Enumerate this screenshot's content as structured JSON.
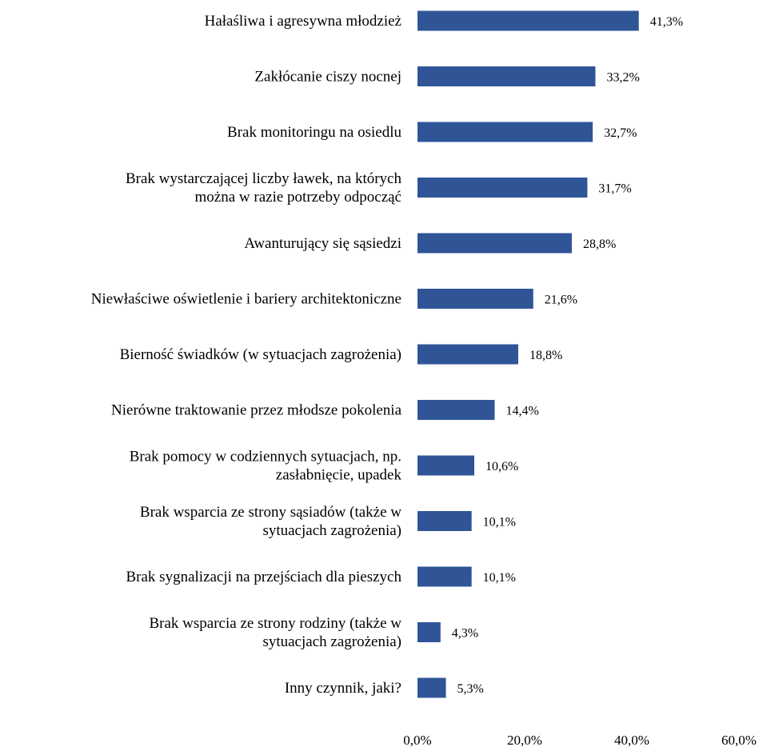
{
  "chart_data": {
    "type": "bar",
    "orientation": "horizontal",
    "categories": [
      "Hałaśliwa i agresywna młodzież",
      "Zakłócanie ciszy nocnej",
      "Brak monitoringu na osiedlu",
      "Brak wystarczającej liczby ławek, na których\nmożna w razie potrzeby odpocząć",
      "Awanturujący się sąsiedzi",
      "Niewłaściwe oświetlenie i bariery architektoniczne",
      "Bierność świadków (w sytuacjach zagrożenia)",
      "Nierówne traktowanie przez młodsze pokolenia",
      "Brak pomocy w codziennych sytuacjach, np.\nzasłabnięcie, upadek",
      "Brak wsparcia ze strony sąsiadów (także w\nsytuacjach zagrożenia)",
      "Brak sygnalizacji na przejściach dla pieszych",
      "Brak wsparcia ze strony rodziny (także w\nsytuacjach zagrożenia)",
      "Inny czynnik, jaki?"
    ],
    "values": [
      41.3,
      33.2,
      32.7,
      31.7,
      28.8,
      21.6,
      18.8,
      14.4,
      10.6,
      10.1,
      10.1,
      4.3,
      5.3
    ],
    "value_labels": [
      "41,3%",
      "33,2%",
      "32,7%",
      "31,7%",
      "28,8%",
      "21,6%",
      "18,8%",
      "14,4%",
      "10,6%",
      "10,1%",
      "10,1%",
      "4,3%",
      "5,3%"
    ],
    "xlim": [
      0,
      60
    ],
    "x_ticks": [
      0,
      20,
      40,
      60
    ],
    "x_tick_labels": [
      "0,0%",
      "20,0%",
      "40,0%",
      "60,0%"
    ],
    "bar_color": "#2f5597",
    "grid": false,
    "legend": "none"
  }
}
